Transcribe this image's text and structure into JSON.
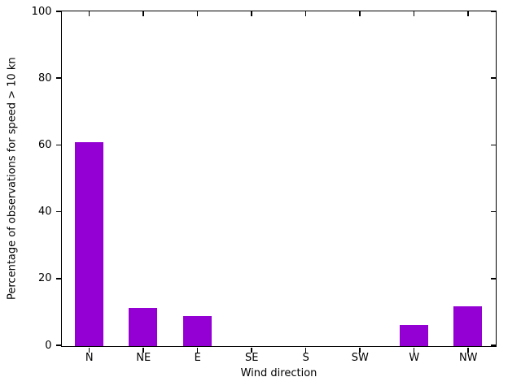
{
  "chart_data": {
    "type": "bar",
    "categories": [
      "N",
      "NE",
      "E",
      "SE",
      "S",
      "SW",
      "W",
      "NW"
    ],
    "values": [
      61,
      11.5,
      9,
      0,
      0,
      0,
      6.3,
      12
    ],
    "title": "",
    "xlabel": "Wind direction",
    "ylabel": "Percentage of observations for speed > 10 kn",
    "ylim": [
      0,
      100
    ],
    "yticks": [
      0,
      20,
      40,
      60,
      80,
      100
    ],
    "bar_color": "#9400d3",
    "axis_color": "#000000",
    "background_color": "#ffffff",
    "grid": false,
    "legend": "none",
    "tick_style": "outward bottom-left, inward mirrored top-right"
  }
}
